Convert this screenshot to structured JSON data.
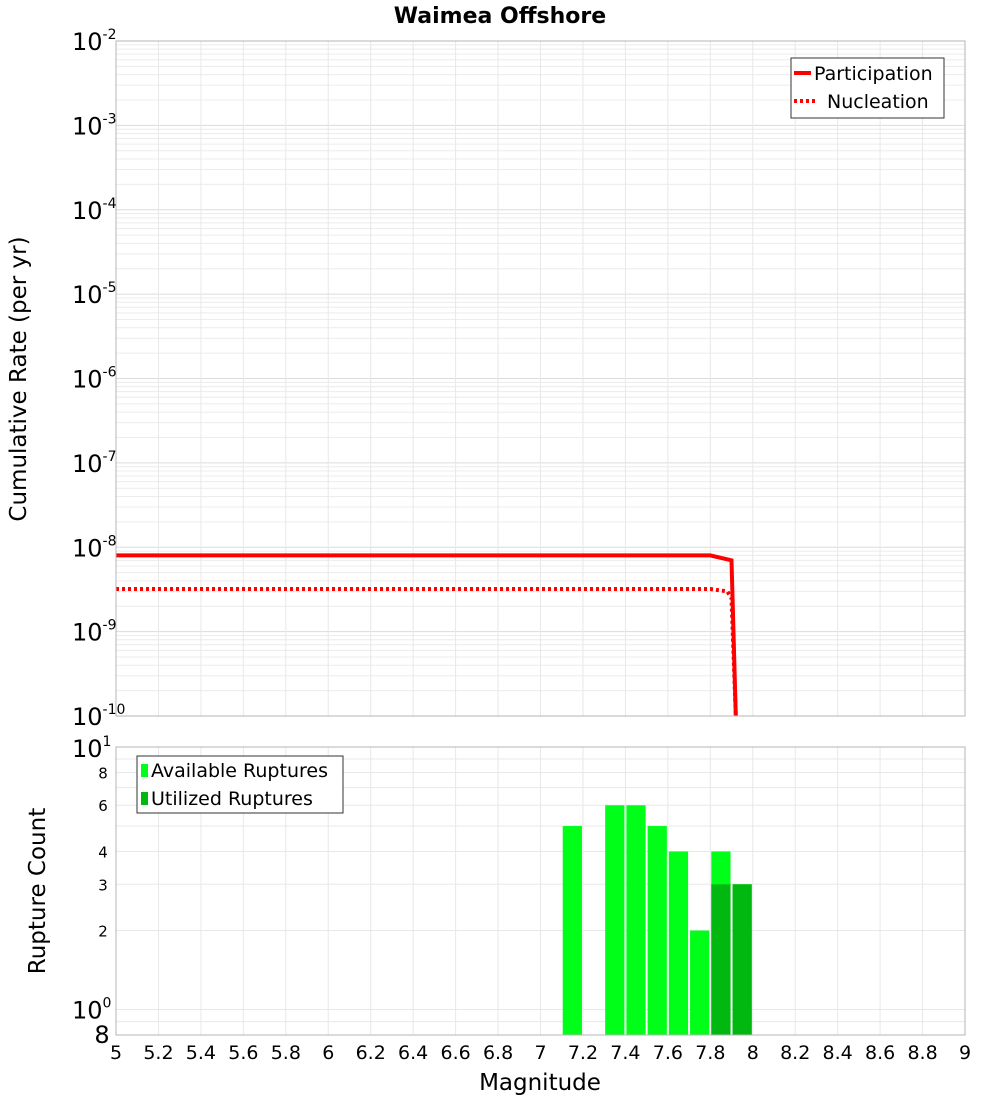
{
  "chart_data": [
    {
      "type": "line",
      "title": "Waimea Offshore",
      "xlabel": "",
      "ylabel": "Cumulative Rate (per yr)",
      "yscale": "log",
      "xlim": [
        5,
        9
      ],
      "ylim": [
        1e-10,
        0.01
      ],
      "y_ticks": [
        {
          "base": "10",
          "exp": "-2"
        },
        {
          "base": "10",
          "exp": "-3"
        },
        {
          "base": "10",
          "exp": "-4"
        },
        {
          "base": "10",
          "exp": "-5"
        },
        {
          "base": "10",
          "exp": "-6"
        },
        {
          "base": "10",
          "exp": "-7"
        },
        {
          "base": "10",
          "exp": "-8"
        },
        {
          "base": "10",
          "exp": "-9"
        },
        {
          "base": "10",
          "exp": "-10"
        }
      ],
      "legend_position": "top-right",
      "series": [
        {
          "name": "Participation",
          "style": "solid",
          "color": "#ff0000",
          "x": [
            5.0,
            7.8,
            7.9,
            7.92
          ],
          "y": [
            8e-09,
            8e-09,
            7e-09,
            1e-10
          ]
        },
        {
          "name": "Nucleation",
          "style": "dotted",
          "color": "#ff0000",
          "x": [
            5.0,
            7.8,
            7.88,
            7.9,
            7.92
          ],
          "y": [
            3.2e-09,
            3.2e-09,
            3e-09,
            2.5e-09,
            1e-10
          ]
        }
      ]
    },
    {
      "type": "bar",
      "title": "",
      "xlabel": "Magnitude",
      "ylabel": "Rupture Count",
      "yscale": "log",
      "xlim": [
        5,
        9
      ],
      "ylim": [
        0.8,
        10
      ],
      "x_ticks": [
        "5",
        "5.2",
        "5.4",
        "5.6",
        "5.8",
        "6",
        "6.2",
        "6.4",
        "6.6",
        "6.8",
        "7",
        "7.2",
        "7.4",
        "7.6",
        "7.8",
        "8",
        "8.2",
        "8.4",
        "8.6",
        "8.8",
        "9"
      ],
      "y_ticks_top": {
        "base": "10",
        "exp": "1"
      },
      "y_ticks_minor_top": [
        "8",
        "6",
        "4",
        "3",
        "2"
      ],
      "y_ticks_bottom": {
        "base": "10",
        "exp": "0"
      },
      "y_tick_bottom_minor": "8",
      "bar_width": 0.1,
      "legend_position": "top-left",
      "series": [
        {
          "name": "Available Ruptures",
          "color": "#00ff18",
          "x": [
            7.15,
            7.35,
            7.45,
            7.55,
            7.65,
            7.75,
            7.85,
            7.95
          ],
          "values": [
            5,
            6,
            6,
            5,
            4,
            2,
            4,
            3
          ]
        },
        {
          "name": "Utilized Ruptures",
          "color": "#00b80f",
          "x": [
            7.85,
            7.95
          ],
          "values": [
            3,
            3
          ]
        }
      ]
    }
  ]
}
